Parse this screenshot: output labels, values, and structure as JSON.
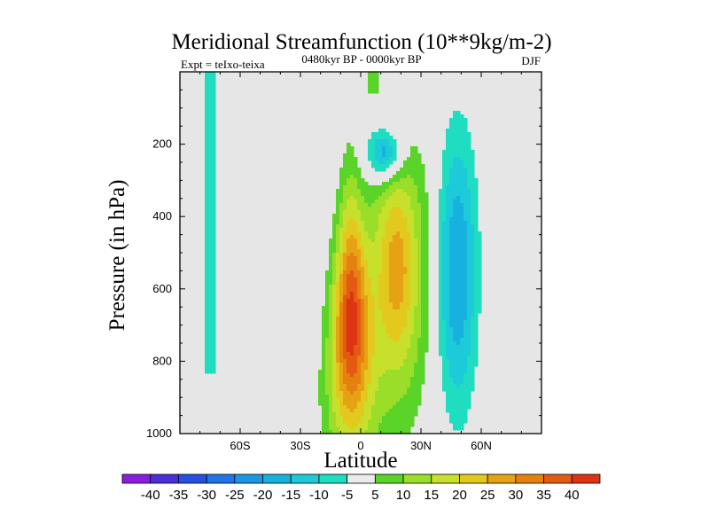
{
  "chart_data": {
    "type": "heatmap",
    "subtype": "filled-contour",
    "title": "Meridional Streamfunction (10**9kg/m-2)",
    "left_string": "Expt = teIxo-teixa",
    "center_string": "0480kyr BP - 0000kyr BP",
    "right_string": "DJF",
    "xlabel": "Latitude",
    "ylabel": "Pressure (in hPa)",
    "xlim": [
      -90,
      90
    ],
    "ylim": [
      1000,
      0
    ],
    "x_ticks": [
      -60,
      -30,
      0,
      30,
      60
    ],
    "x_tick_labels": [
      "60S",
      "30S",
      "0",
      "30N",
      "60N"
    ],
    "y_ticks": [
      200,
      400,
      600,
      800,
      1000
    ],
    "y_tick_labels": [
      "200",
      "400",
      "600",
      "800",
      "1000"
    ],
    "background_color": "#e6e6e6",
    "colorbar": {
      "levels": [
        -40,
        -35,
        -30,
        -25,
        -20,
        -15,
        -10,
        -5,
        5,
        10,
        15,
        20,
        25,
        30,
        35,
        40
      ],
      "labels": [
        "-40",
        "-35",
        "-30",
        "-25",
        "-20",
        "-15",
        "-10",
        "-5",
        "5",
        "10",
        "15",
        "20",
        "25",
        "30",
        "35",
        "40"
      ],
      "colors": [
        "#8a1ce0",
        "#4a2fd8",
        "#2650e0",
        "#1f74e8",
        "#1a96e6",
        "#17b1e0",
        "#1ccad9",
        "#1fddc0",
        "#ebebeb",
        "#5ad428",
        "#9ade2a",
        "#c8e02c",
        "#e3c81e",
        "#e6a214",
        "#e6800f",
        "#e35a12",
        "#dd3412"
      ]
    },
    "features": [
      {
        "name": "tropical-positive-cell",
        "lat_range": [
          -12,
          8
        ],
        "p_range": [
          260,
          985
        ],
        "max": 40,
        "core_lat": -5,
        "core_p": 700
      },
      {
        "name": "subtropical-positive-lobe",
        "lat_range": [
          5,
          38
        ],
        "p_range": [
          300,
          980
        ],
        "max": 25,
        "core_lat": 18,
        "core_p": 550
      },
      {
        "name": "upper-negative-cell",
        "lat_range": [
          -3,
          25
        ],
        "p_range": [
          80,
          300
        ],
        "min": -20,
        "core_lat": 12,
        "core_p": 225
      },
      {
        "name": "midlatitude-negative-cell",
        "lat_range": [
          38,
          62
        ],
        "p_range": [
          180,
          960
        ],
        "min": -15,
        "core_lat": 48,
        "core_p": 550
      },
      {
        "name": "southern-negative-strip",
        "lat_range": [
          -77,
          -73
        ],
        "p_range": [
          0,
          830
        ],
        "min": -5
      },
      {
        "name": "upper-positive-strip",
        "lat_range": [
          4,
          9
        ],
        "p_range": [
          0,
          60
        ],
        "max": 5
      }
    ]
  }
}
